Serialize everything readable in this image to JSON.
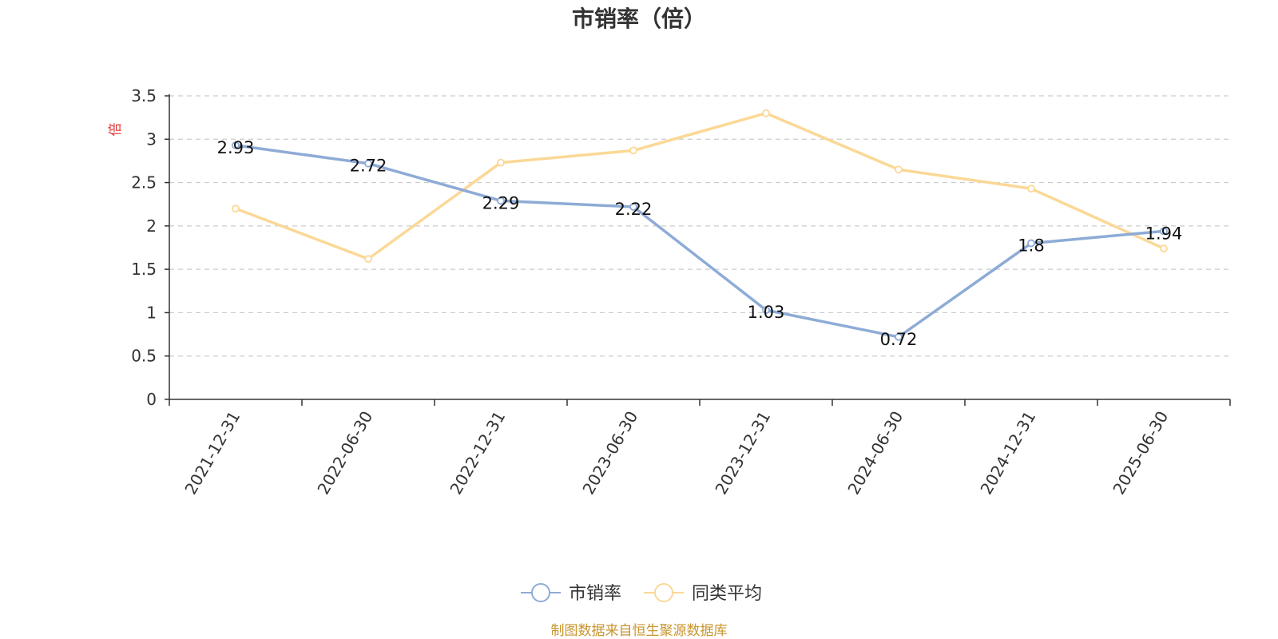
{
  "chart_data": {
    "type": "line",
    "title": "市销率（倍）",
    "ylabel": "倍",
    "xlabel": "",
    "categories": [
      "2021-12-31",
      "2022-06-30",
      "2022-12-31",
      "2023-06-30",
      "2023-12-31",
      "2024-06-30",
      "2024-12-31",
      "2025-06-30"
    ],
    "y_ticks": [
      "0",
      "0.5",
      "1",
      "1.5",
      "2",
      "2.5",
      "3",
      "3.5"
    ],
    "ylim": [
      0,
      3.5
    ],
    "grid": "horizontal-dashed",
    "legend_position": "bottom",
    "series": [
      {
        "name": "市销率",
        "color": "#8eabd6",
        "values": [
          2.93,
          2.72,
          2.29,
          2.22,
          1.03,
          0.72,
          1.8,
          1.94
        ],
        "labels": [
          "2.93",
          "2.72",
          "2.29",
          "2.22",
          "1.03",
          "0.72",
          "1.8",
          "1.94"
        ]
      },
      {
        "name": "同类平均",
        "color": "#fbd896",
        "values": [
          2.2,
          1.62,
          2.73,
          2.87,
          3.3,
          2.65,
          2.43,
          1.74
        ]
      }
    ]
  },
  "footer": {
    "source": "制图数据来自恒生聚源数据库"
  }
}
